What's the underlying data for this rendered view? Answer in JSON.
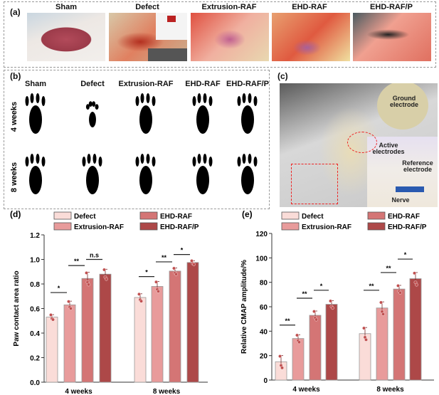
{
  "panel_a": {
    "label": "(a)",
    "titles": [
      "Sham",
      "Defect",
      "Extrusion-RAF",
      "EHD-RAF",
      "EHD-RAF/P"
    ]
  },
  "panel_b": {
    "label": "(b)",
    "titles": [
      "Sham",
      "Defect",
      "Extrusion-RAF",
      "EHD-RAF",
      "EHD-RAF/P"
    ],
    "rows": [
      "4 weeks",
      "8 weeks"
    ]
  },
  "panel_c": {
    "label": "(c)",
    "annotations": {
      "ground": "Ground electrode",
      "active": "Active electrodes",
      "reference": "Reference electrode",
      "nerve": "Nerve"
    }
  },
  "colors": {
    "Defect": "#fadcd8",
    "Extrusion-RAF": "#e89b9b",
    "EHD-RAF": "#d47575",
    "EHD-RAF/P": "#ad4848"
  },
  "chart_data": [
    {
      "panel": "(d)",
      "type": "bar",
      "categories": [
        "4 weeks",
        "8 weeks"
      ],
      "ylabel": "Paw contact area ratio",
      "ylim": [
        0,
        1.2
      ],
      "yticks": [
        "0.0",
        "0.2",
        "0.4",
        "0.6",
        "0.8",
        "1.0",
        "1.2"
      ],
      "legend": "top",
      "series": [
        {
          "name": "Defect",
          "values": [
            0.53,
            0.69
          ],
          "errors": [
            0.02,
            0.03
          ]
        },
        {
          "name": "Extrusion-RAF",
          "values": [
            0.63,
            0.78
          ],
          "errors": [
            0.03,
            0.04
          ]
        },
        {
          "name": "EHD-RAF",
          "values": [
            0.845,
            0.905
          ],
          "errors": [
            0.05,
            0.025
          ]
        },
        {
          "name": "EHD-RAF/P",
          "values": [
            0.88,
            0.975
          ],
          "errors": [
            0.04,
            0.015
          ]
        }
      ],
      "significance": [
        {
          "group": 0,
          "pair": [
            0,
            1
          ],
          "label": "*",
          "y": 0.73
        },
        {
          "group": 0,
          "pair": [
            1,
            2
          ],
          "label": "**",
          "y": 0.95
        },
        {
          "group": 0,
          "pair": [
            2,
            3
          ],
          "label": "n.s",
          "y": 1.0
        },
        {
          "group": 1,
          "pair": [
            0,
            1
          ],
          "label": "*",
          "y": 0.86
        },
        {
          "group": 1,
          "pair": [
            1,
            2
          ],
          "label": "**",
          "y": 0.98
        },
        {
          "group": 1,
          "pair": [
            2,
            3
          ],
          "label": "*",
          "y": 1.04
        }
      ]
    },
    {
      "panel": "(e)",
      "type": "bar",
      "categories": [
        "4 weeks",
        "8 weeks"
      ],
      "ylabel": "Relative CMAP amplitude/%",
      "ylim": [
        0,
        120
      ],
      "yticks": [
        "0",
        "20",
        "40",
        "60",
        "80",
        "100",
        "120"
      ],
      "legend": "top",
      "series": [
        {
          "name": "Defect",
          "values": [
            15,
            38
          ],
          "errors": [
            5,
            5
          ]
        },
        {
          "name": "Extrusion-RAF",
          "values": [
            34,
            59
          ],
          "errors": [
            3,
            5
          ]
        },
        {
          "name": "EHD-RAF",
          "values": [
            53,
            74.5
          ],
          "errors": [
            3.5,
            3
          ]
        },
        {
          "name": "EHD-RAF/P",
          "values": [
            62,
            83
          ],
          "errors": [
            3,
            5
          ]
        }
      ],
      "significance": [
        {
          "group": 0,
          "pair": [
            0,
            1
          ],
          "label": "**",
          "y": 45
        },
        {
          "group": 0,
          "pair": [
            1,
            2
          ],
          "label": "**",
          "y": 67
        },
        {
          "group": 0,
          "pair": [
            2,
            3
          ],
          "label": "*",
          "y": 73.5
        },
        {
          "group": 1,
          "pair": [
            0,
            1
          ],
          "label": "**",
          "y": 73.5
        },
        {
          "group": 1,
          "pair": [
            1,
            2
          ],
          "label": "**",
          "y": 88
        },
        {
          "group": 1,
          "pair": [
            2,
            3
          ],
          "label": "*",
          "y": 99
        }
      ]
    }
  ]
}
